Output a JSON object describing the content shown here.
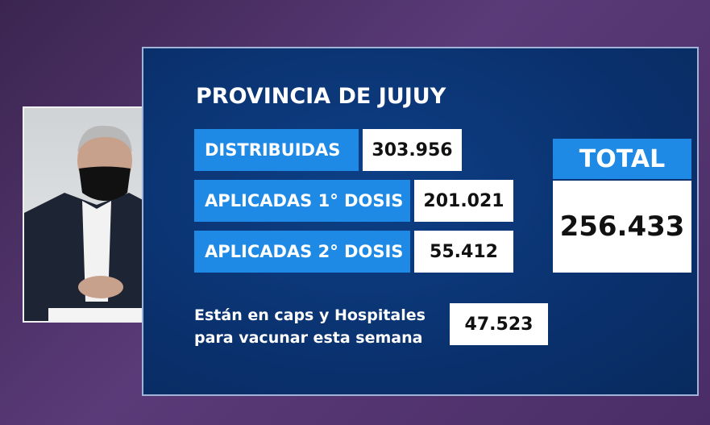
{
  "title": "PROVINCIA DE JUJUY",
  "rows": [
    {
      "label": "DISTRIBUIDAS",
      "value": "303.956"
    },
    {
      "label": "APLICADAS 1° DOSIS",
      "value": "201.021"
    },
    {
      "label": "APLICADAS 2° DOSIS",
      "value": "55.412"
    }
  ],
  "total": {
    "label": "TOTAL",
    "value": "256.433"
  },
  "note": {
    "lines": [
      "Están en caps y Hospitales",
      "para vacunar esta semana"
    ],
    "value": "47.523"
  }
}
